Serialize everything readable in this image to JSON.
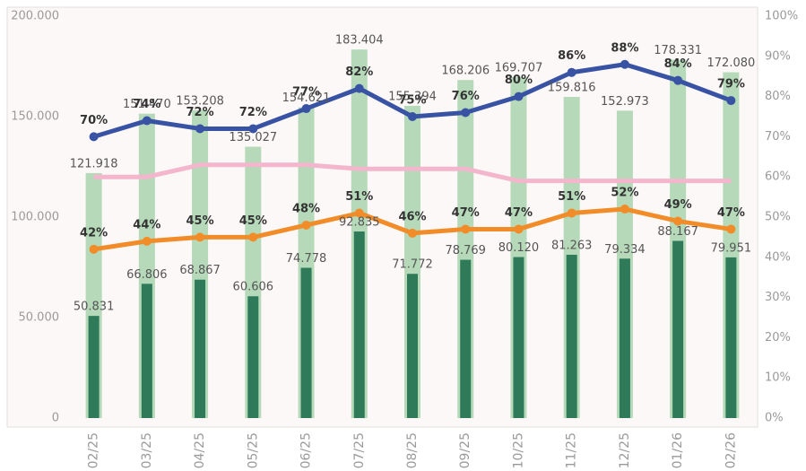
{
  "chart_data": {
    "type": "combo",
    "categories": [
      "02/25",
      "03/25",
      "04/25",
      "05/25",
      "06/25",
      "07/25",
      "08/25",
      "09/25",
      "10/25",
      "11/25",
      "12/25",
      "01/26",
      "02/26"
    ],
    "ylim": [
      0,
      200000
    ],
    "yticks": [
      0,
      {
        "value": 50000,
        "label": "50.000"
      },
      {
        "value": 100000,
        "label": "100.000"
      },
      {
        "value": 150000,
        "label": "150.000"
      },
      {
        "value": 200000,
        "label": "200.000"
      }
    ],
    "y2lim": [
      0,
      100
    ],
    "y2ticks": [
      {
        "value": 0,
        "label": "0%"
      },
      {
        "value": 10,
        "label": "10%"
      },
      {
        "value": 20,
        "label": "20%"
      },
      {
        "value": 30,
        "label": "30%"
      },
      {
        "value": 40,
        "label": "40%"
      },
      {
        "value": 50,
        "label": "50%"
      },
      {
        "value": 60,
        "label": "60%"
      },
      {
        "value": 70,
        "label": "70%"
      },
      {
        "value": 80,
        "label": "80%"
      },
      {
        "value": 90,
        "label": "90%"
      },
      {
        "value": 100,
        "label": "100%"
      }
    ],
    "series": [
      {
        "type": "bar",
        "axis": "y",
        "color": "#b5d9b9",
        "width": 18,
        "values": [
          121918,
          151470,
          153208,
          135027,
          154621,
          183404,
          155394,
          168206,
          169707,
          159816,
          152973,
          178331,
          172080
        ],
        "value_labels": [
          "121.918",
          "151.470",
          "153.208",
          "135.027",
          "154.621",
          "183.404",
          "155.394",
          "168.206",
          "169.707",
          "159.816",
          "152.973",
          "178.331",
          "172.080"
        ]
      },
      {
        "type": "bar",
        "axis": "y",
        "color": "#2f7a59",
        "width": 12,
        "values": [
          50831,
          66806,
          68867,
          60606,
          74778,
          92835,
          71772,
          78769,
          80120,
          81263,
          79334,
          88167,
          79951
        ],
        "value_labels": [
          "50.831",
          "66.806",
          "68.867",
          "60.606",
          "74.778",
          "92.835",
          "71.772",
          "78.769",
          "80.120",
          "81.263",
          "79.334",
          "88.167",
          "79.951"
        ]
      },
      {
        "type": "line",
        "axis": "y2",
        "color": "#f4b6cd",
        "values": [
          60,
          60,
          63,
          63,
          63,
          62,
          62,
          62,
          59,
          59,
          59,
          59,
          59
        ]
      },
      {
        "type": "line",
        "axis": "y2",
        "color": "#f28c28",
        "markers": true,
        "values": [
          42,
          44,
          45,
          45,
          48,
          51,
          46,
          47,
          47,
          51,
          52,
          49,
          47
        ],
        "value_labels": [
          "42%",
          "44%",
          "45%",
          "45%",
          "48%",
          "51%",
          "46%",
          "47%",
          "47%",
          "51%",
          "52%",
          "49%",
          "47%"
        ]
      },
      {
        "type": "line",
        "axis": "y2",
        "color": "#3953a4",
        "markers": true,
        "values": [
          70,
          74,
          72,
          72,
          77,
          82,
          75,
          76,
          80,
          86,
          88,
          84,
          79
        ],
        "value_labels": [
          "70%",
          "74%",
          "72%",
          "72%",
          "77%",
          "82%",
          "75%",
          "76%",
          "80%",
          "86%",
          "88%",
          "84%",
          "79%"
        ]
      }
    ]
  }
}
